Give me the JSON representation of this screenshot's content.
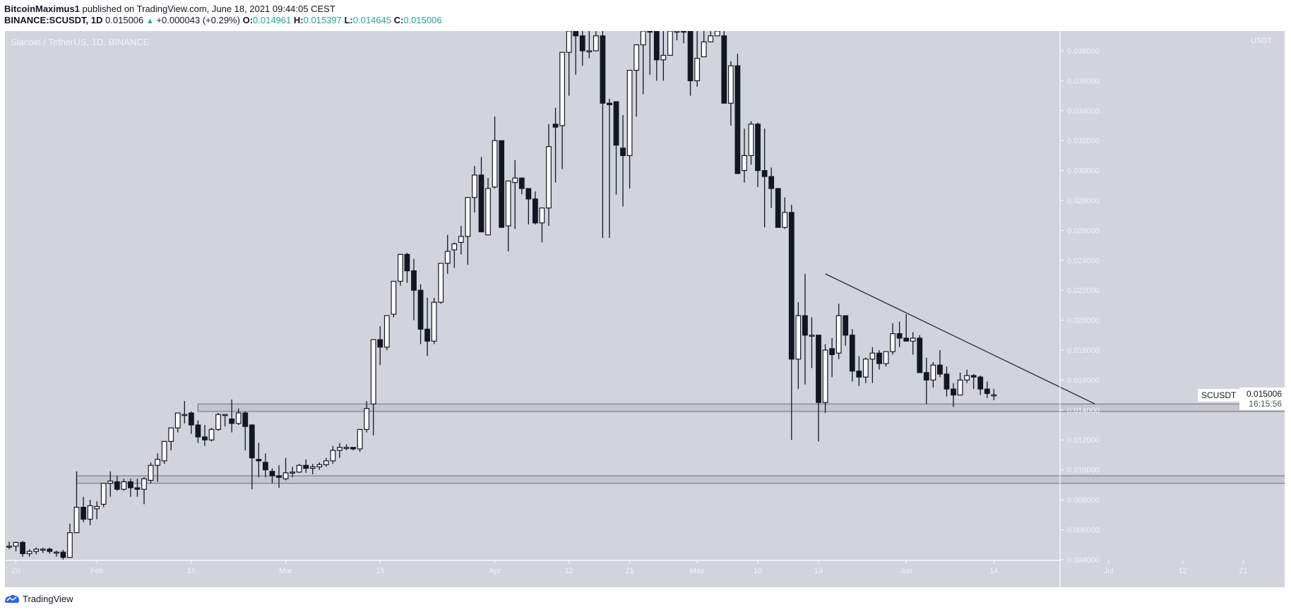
{
  "header": {
    "author": "BitcoinMaximus1",
    "published_text": "published on TradingView.com, June 18, 2021 09:44:05 CEST",
    "symbol": "BINANCE:SCUSDT, 1D",
    "last": "0.015006",
    "change_arrow": "▲",
    "change": "+0.000043 (+0.29%)",
    "o_label": "O:",
    "o": "0.014961",
    "h_label": "H:",
    "h": "0.015397",
    "l_label": "L:",
    "l": "0.014645",
    "c_label": "C:",
    "c": "0.015006"
  },
  "chart_title": "Siacoin / TetherUS, 1D, BINANCE",
  "axis_unit": "USDT",
  "last_price_tag": {
    "symbol": "SCUSDT",
    "price": "0.015006",
    "countdown": "16:15:56"
  },
  "footer": {
    "brand": "TradingView"
  },
  "colors": {
    "background": "#d1d4dc",
    "up_body": "#ffffff",
    "down_body": "#131722",
    "wick": "#131722",
    "zone_fill": "#c4c7d0",
    "zone_border": "#7b7e86",
    "axis_text": "#f0f3fa",
    "teal": "#26a69a"
  },
  "chart_data": {
    "type": "candlestick",
    "title": "Siacoin / TetherUS, 1D, BINANCE",
    "ylabel": "USDT",
    "ylim": [
      0.0033,
      0.0388
    ],
    "yticks": [
      0.004,
      0.006,
      0.008,
      0.01,
      0.012,
      0.014,
      0.016,
      0.018,
      0.02,
      0.022,
      0.024,
      0.026,
      0.028,
      0.03,
      0.032,
      0.034,
      0.036,
      0.038
    ],
    "xtick_labels": [
      {
        "label": "20",
        "day": 1
      },
      {
        "label": "Feb",
        "day": 13
      },
      {
        "label": "15",
        "day": 27
      },
      {
        "label": "Mar",
        "day": 41
      },
      {
        "label": "15",
        "day": 55
      },
      {
        "label": "Apr",
        "day": 72
      },
      {
        "label": "12",
        "day": 83
      },
      {
        "label": "21",
        "day": 92
      },
      {
        "label": "May",
        "day": 102
      },
      {
        "label": "10",
        "day": 111
      },
      {
        "label": "19",
        "day": 120
      },
      {
        "label": "Jun",
        "day": 133
      },
      {
        "label": "14",
        "day": 146
      },
      {
        "label": "Jul",
        "day": 163
      },
      {
        "label": "12",
        "day": 174
      },
      {
        "label": "21",
        "day": 183
      }
    ],
    "grid": false,
    "start_date": "2021-01-19",
    "candles": [
      [
        0.0049,
        0.0052,
        0.0047,
        0.0049
      ],
      [
        0.0049,
        0.0052,
        0.00455,
        0.00515
      ],
      [
        0.00515,
        0.00525,
        0.0042,
        0.0044
      ],
      [
        0.0044,
        0.0047,
        0.0042,
        0.00455
      ],
      [
        0.00455,
        0.0048,
        0.00435,
        0.0047
      ],
      [
        0.00465,
        0.0048,
        0.00445,
        0.0047
      ],
      [
        0.0047,
        0.0048,
        0.0044,
        0.00455
      ],
      [
        0.0045,
        0.0046,
        0.0042,
        0.0045
      ],
      [
        0.0045,
        0.00465,
        0.004,
        0.00415
      ],
      [
        0.00415,
        0.0064,
        0.00415,
        0.0058
      ],
      [
        0.0058,
        0.0099,
        0.0058,
        0.0075
      ],
      [
        0.0075,
        0.0082,
        0.0065,
        0.0067
      ],
      [
        0.0067,
        0.008,
        0.0063,
        0.0076
      ],
      [
        0.0074,
        0.0079,
        0.0067,
        0.00755
      ],
      [
        0.0077,
        0.0091,
        0.0075,
        0.0091
      ],
      [
        0.0091,
        0.0099,
        0.0082,
        0.00925
      ],
      [
        0.0092,
        0.0096,
        0.0086,
        0.0087
      ],
      [
        0.0087,
        0.0094,
        0.0086,
        0.0092
      ],
      [
        0.0092,
        0.0094,
        0.0082,
        0.0088
      ],
      [
        0.0088,
        0.0094,
        0.0082,
        0.0087
      ],
      [
        0.0087,
        0.0095,
        0.0077,
        0.0094
      ],
      [
        0.0093,
        0.0105,
        0.0091,
        0.0103
      ],
      [
        0.0103,
        0.0111,
        0.0092,
        0.0107
      ],
      [
        0.0106,
        0.0119,
        0.0104,
        0.0119
      ],
      [
        0.0119,
        0.0127,
        0.0113,
        0.0128
      ],
      [
        0.0128,
        0.0136,
        0.0125,
        0.0138
      ],
      [
        0.0137,
        0.0146,
        0.0131,
        0.0137
      ],
      [
        0.0138,
        0.0139,
        0.0124,
        0.013
      ],
      [
        0.013,
        0.0133,
        0.0118,
        0.0122
      ],
      [
        0.0122,
        0.013,
        0.0116,
        0.012
      ],
      [
        0.012,
        0.0128,
        0.0119,
        0.0127
      ],
      [
        0.0127,
        0.0138,
        0.0126,
        0.0137
      ],
      [
        0.0137,
        0.0136,
        0.0129,
        0.0137
      ],
      [
        0.0134,
        0.0147,
        0.0125,
        0.0131
      ],
      [
        0.0131,
        0.0141,
        0.013,
        0.0138
      ],
      [
        0.0138,
        0.0139,
        0.0113,
        0.0129
      ],
      [
        0.013,
        0.013,
        0.0087,
        0.0108
      ],
      [
        0.0107,
        0.0118,
        0.0095,
        0.0106
      ],
      [
        0.0105,
        0.0111,
        0.0095,
        0.01
      ],
      [
        0.0099,
        0.0101,
        0.0091,
        0.0096
      ],
      [
        0.0096,
        0.0103,
        0.0088,
        0.0095
      ],
      [
        0.0094,
        0.0108,
        0.0093,
        0.0098
      ],
      [
        0.00985,
        0.0102,
        0.0095,
        0.00985
      ],
      [
        0.00985,
        0.0104,
        0.0098,
        0.0103
      ],
      [
        0.0103,
        0.0107,
        0.0098,
        0.0101
      ],
      [
        0.0101,
        0.0104,
        0.0097,
        0.0102
      ],
      [
        0.0102,
        0.0105,
        0.01,
        0.01035
      ],
      [
        0.01035,
        0.0108,
        0.0102,
        0.0106
      ],
      [
        0.0106,
        0.0116,
        0.0104,
        0.0113
      ],
      [
        0.0113,
        0.0118,
        0.0108,
        0.0115
      ],
      [
        0.0115,
        0.0117,
        0.0113,
        0.0115
      ],
      [
        0.0115,
        0.0115,
        0.0113,
        0.0114
      ],
      [
        0.0114,
        0.0119,
        0.0112,
        0.0127
      ],
      [
        0.0127,
        0.0146,
        0.0125,
        0.0141
      ],
      [
        0.0144,
        0.0149,
        0.0123,
        0.0187
      ],
      [
        0.0187,
        0.0196,
        0.017,
        0.0182
      ],
      [
        0.0182,
        0.0201,
        0.018,
        0.0203
      ],
      [
        0.0204,
        0.022,
        0.0202,
        0.0226
      ],
      [
        0.0226,
        0.0244,
        0.0223,
        0.0244
      ],
      [
        0.0244,
        0.0245,
        0.0225,
        0.0233
      ],
      [
        0.0233,
        0.0241,
        0.02,
        0.022
      ],
      [
        0.022,
        0.0224,
        0.0184,
        0.0194
      ],
      [
        0.0194,
        0.0215,
        0.0176,
        0.0186
      ],
      [
        0.0186,
        0.0215,
        0.0184,
        0.0212
      ],
      [
        0.0212,
        0.0235,
        0.0211,
        0.0238
      ],
      [
        0.0238,
        0.0257,
        0.0231,
        0.0246
      ],
      [
        0.0247,
        0.0252,
        0.0235,
        0.0251
      ],
      [
        0.0252,
        0.0263,
        0.0244,
        0.0256
      ],
      [
        0.0256,
        0.028,
        0.0237,
        0.0282
      ],
      [
        0.0282,
        0.0303,
        0.0272,
        0.0297
      ],
      [
        0.0297,
        0.0309,
        0.028,
        0.0259
      ],
      [
        0.0257,
        0.0295,
        0.0259,
        0.0288
      ],
      [
        0.0289,
        0.0336,
        0.0288,
        0.032
      ],
      [
        0.032,
        0.0315,
        0.0264,
        0.0262
      ],
      [
        0.0263,
        0.029,
        0.0246,
        0.0293
      ],
      [
        0.0292,
        0.0307,
        0.0261,
        0.0295
      ],
      [
        0.0295,
        0.0293,
        0.0284,
        0.0288
      ],
      [
        0.0288,
        0.0288,
        0.0264,
        0.0281
      ],
      [
        0.0281,
        0.0286,
        0.0264,
        0.0265
      ],
      [
        0.0265,
        0.0274,
        0.0252,
        0.0275
      ],
      [
        0.0275,
        0.0331,
        0.0263,
        0.0316
      ],
      [
        0.0331,
        0.0342,
        0.0292,
        0.0329
      ],
      [
        0.033,
        0.0352,
        0.0301,
        0.0379
      ],
      [
        0.0379,
        0.04,
        0.035,
        0.0395
      ],
      [
        0.0395,
        0.04,
        0.0364,
        0.039
      ],
      [
        0.039,
        0.04,
        0.037,
        0.038
      ],
      [
        0.038,
        0.04,
        0.0375,
        0.038
      ],
      [
        0.038,
        0.04,
        0.038,
        0.039
      ],
      [
        0.039,
        0.04,
        0.0255,
        0.0345
      ],
      [
        0.0345,
        0.0348,
        0.0255,
        0.0344
      ],
      [
        0.0346,
        0.0331,
        0.0284,
        0.0317
      ],
      [
        0.0315,
        0.0337,
        0.0276,
        0.031
      ],
      [
        0.031,
        0.0362,
        0.0288,
        0.0367
      ],
      [
        0.0367,
        0.038,
        0.0336,
        0.0384
      ],
      [
        0.0384,
        0.04,
        0.0351,
        0.04
      ],
      [
        0.04,
        0.04,
        0.0364,
        0.0394
      ],
      [
        0.0395,
        0.04,
        0.036,
        0.0374
      ],
      [
        0.0374,
        0.04,
        0.036,
        0.0377
      ],
      [
        0.0377,
        0.04,
        0.0385,
        0.0394
      ],
      [
        0.0394,
        0.04,
        0.0387,
        0.0397
      ],
      [
        0.0397,
        0.04,
        0.0385,
        0.0396
      ],
      [
        0.0395,
        0.04,
        0.035,
        0.036
      ],
      [
        0.036,
        0.04,
        0.0356,
        0.0375
      ],
      [
        0.0376,
        0.04,
        0.0385,
        0.0386
      ],
      [
        0.0386,
        0.04,
        0.039,
        0.039
      ],
      [
        0.039,
        0.04,
        0.039,
        0.0395
      ],
      [
        0.039,
        0.04,
        0.0359,
        0.0345
      ],
      [
        0.0345,
        0.0373,
        0.033,
        0.037
      ],
      [
        0.037,
        0.0378,
        0.033,
        0.0298
      ],
      [
        0.03,
        0.0328,
        0.0292,
        0.031
      ],
      [
        0.031,
        0.0333,
        0.0304,
        0.0331
      ],
      [
        0.0331,
        0.0332,
        0.0289,
        0.03
      ],
      [
        0.03,
        0.0328,
        0.0262,
        0.0296
      ],
      [
        0.0296,
        0.0302,
        0.0275,
        0.0288
      ],
      [
        0.0288,
        0.0286,
        0.0262,
        0.0262
      ],
      [
        0.0262,
        0.0282,
        0.0261,
        0.0272
      ],
      [
        0.0272,
        0.0277,
        0.012,
        0.0174
      ],
      [
        0.0174,
        0.0212,
        0.0154,
        0.0203
      ],
      [
        0.0203,
        0.0231,
        0.0157,
        0.019
      ],
      [
        0.019,
        0.0202,
        0.0168,
        0.019
      ],
      [
        0.019,
        0.019,
        0.0119,
        0.0145
      ],
      [
        0.0145,
        0.0184,
        0.0138,
        0.018
      ],
      [
        0.0181,
        0.0188,
        0.0162,
        0.0177
      ],
      [
        0.0178,
        0.0211,
        0.0174,
        0.0203
      ],
      [
        0.0203,
        0.0203,
        0.0183,
        0.019
      ],
      [
        0.019,
        0.0194,
        0.0159,
        0.0166
      ],
      [
        0.0166,
        0.0176,
        0.0156,
        0.0162
      ],
      [
        0.0162,
        0.0175,
        0.0158,
        0.0174
      ],
      [
        0.0174,
        0.0182,
        0.0158,
        0.0178
      ],
      [
        0.0178,
        0.018,
        0.0167,
        0.0171
      ],
      [
        0.0171,
        0.0179,
        0.0169,
        0.0179
      ],
      [
        0.0179,
        0.0198,
        0.0177,
        0.0191
      ],
      [
        0.0191,
        0.0199,
        0.0182,
        0.0188
      ],
      [
        0.0188,
        0.0204,
        0.0187,
        0.0186
      ],
      [
        0.0186,
        0.0192,
        0.0177,
        0.0188
      ],
      [
        0.0188,
        0.019,
        0.017,
        0.0165
      ],
      [
        0.0165,
        0.0175,
        0.0144,
        0.016
      ],
      [
        0.016,
        0.0172,
        0.0155,
        0.017
      ],
      [
        0.017,
        0.018,
        0.0162,
        0.0164
      ],
      [
        0.0164,
        0.0169,
        0.0149,
        0.0154
      ],
      [
        0.0154,
        0.0158,
        0.0142,
        0.015
      ],
      [
        0.015,
        0.0165,
        0.0153,
        0.016
      ],
      [
        0.016,
        0.0167,
        0.0158,
        0.0163
      ],
      [
        0.0163,
        0.0164,
        0.0154,
        0.0162
      ],
      [
        0.0162,
        0.0163,
        0.015,
        0.0154
      ],
      [
        0.0154,
        0.0159,
        0.0148,
        0.0151
      ],
      [
        0.01496,
        0.0154,
        0.01465,
        0.01501
      ]
    ],
    "annotations": {
      "zones": [
        {
          "top": 0.0144,
          "bottom": 0.0139,
          "start_day": 28,
          "end_day": 193
        },
        {
          "top": 0.0096,
          "bottom": 0.0091,
          "start_day": 10,
          "end_day": 193
        }
      ],
      "trendline": {
        "start_day": 121,
        "start_price": 0.0231,
        "end_day": 161,
        "end_price": 0.0144
      }
    }
  }
}
